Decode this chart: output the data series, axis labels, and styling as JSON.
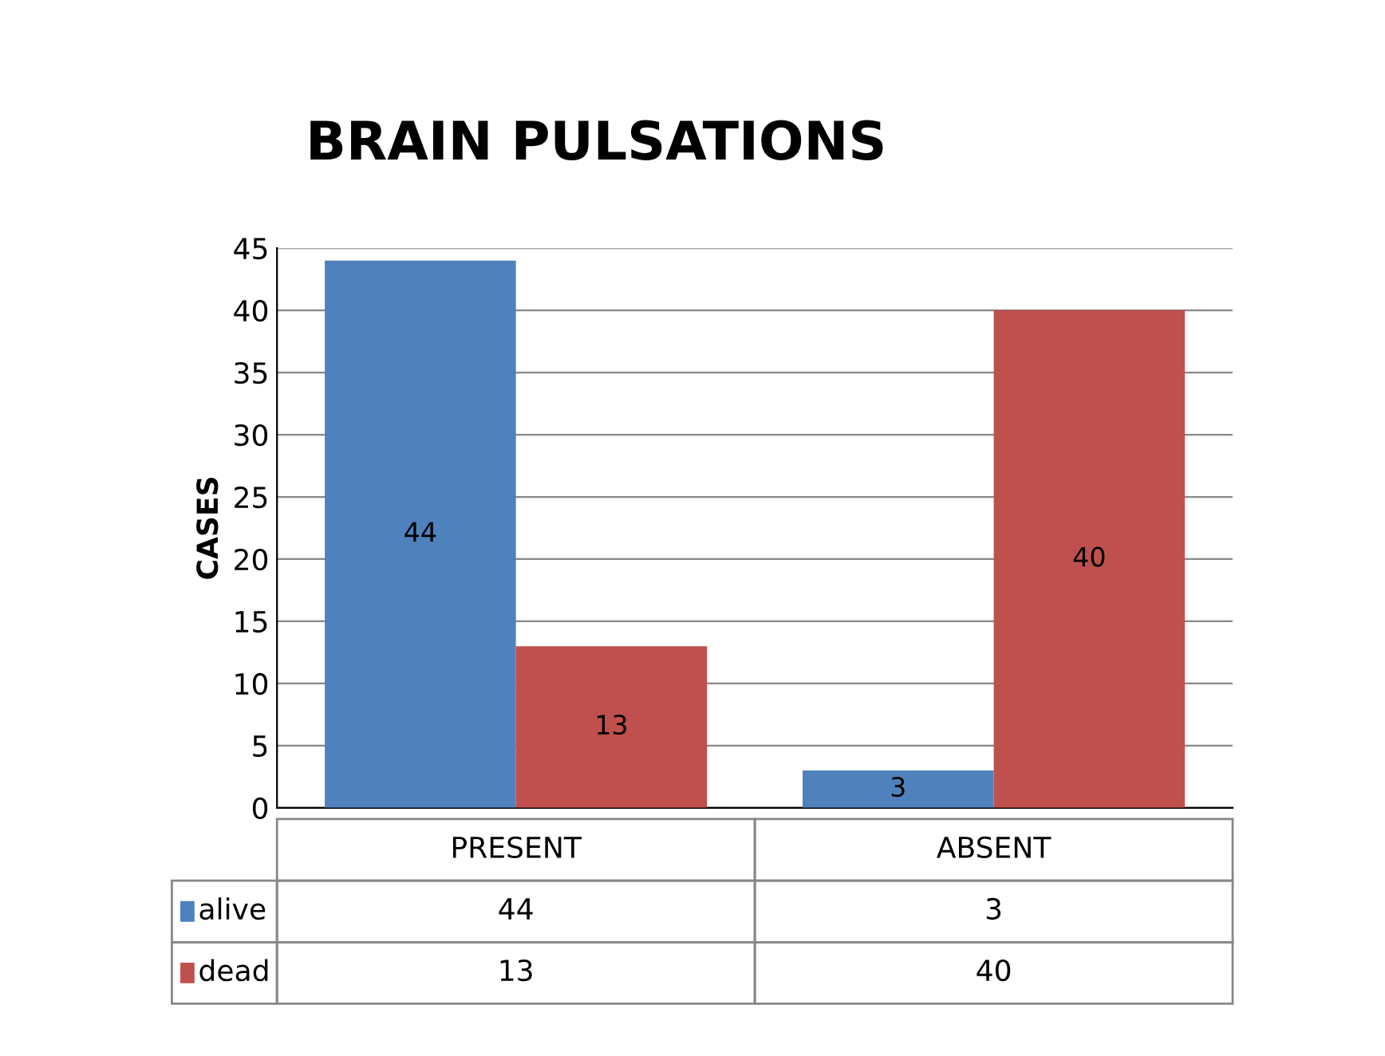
{
  "chart_data": {
    "type": "bar",
    "title": "BRAIN PULSATIONS",
    "ylabel": "CASES",
    "categories": [
      "PRESENT",
      "ABSENT"
    ],
    "series": [
      {
        "name": "alive",
        "color": "#4f81bd",
        "values": [
          44,
          3
        ]
      },
      {
        "name": "dead",
        "color": "#c0504d",
        "values": [
          13,
          40
        ]
      }
    ],
    "ylim": [
      0,
      45
    ],
    "yticks": [
      0,
      5,
      10,
      15,
      20,
      25,
      30,
      35,
      40,
      45
    ],
    "grid": "y",
    "data_labels": true,
    "annotations": [
      "44",
      "3",
      "13",
      "40"
    ],
    "legend": "bottom"
  }
}
